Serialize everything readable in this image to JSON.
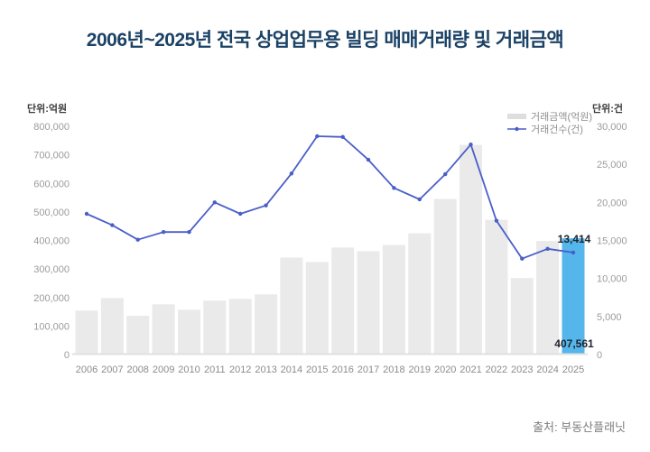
{
  "title": "2006년~2025년 전국 상업업무용 빌딩 매매거래량 및 거래금액",
  "source": "출처: 부동산플래닛",
  "colors": {
    "title": "#1b4265",
    "unit_text": "#3a3a3a",
    "bar": "#eaeaea",
    "bar_highlight": "#54b6ea",
    "line": "#4a5ec8",
    "baseline": "#e0e0e0",
    "axis_text": "#9b9b9b",
    "x_axis_text": "#8c8c8c",
    "legend_bar": "#dedede",
    "legend_text": "#8f8f8f",
    "annotation_text": "#20242e",
    "source_text": "#7d7d7d"
  },
  "chart_data": {
    "type": "bar+line combo",
    "title": "2006년~2025년 전국 상업업무용 빌딩 매매거래량 및 거래금액",
    "categories": [
      "2006",
      "2007",
      "2008",
      "2009",
      "2010",
      "2011",
      "2012",
      "2013",
      "2014",
      "2015",
      "2016",
      "2017",
      "2018",
      "2019",
      "2020",
      "2021",
      "2022",
      "2023",
      "2024",
      "2025"
    ],
    "series": [
      {
        "name": "거래금액(억원)",
        "type": "bar",
        "axis": "left",
        "values": [
          154000,
          198000,
          136000,
          176000,
          157000,
          189000,
          195000,
          211000,
          340000,
          324000,
          375000,
          362000,
          384000,
          425000,
          545000,
          735000,
          472000,
          268000,
          398000,
          407561
        ]
      },
      {
        "name": "거래건수(건)",
        "type": "line",
        "axis": "right",
        "values": [
          18500,
          17000,
          15100,
          16100,
          16100,
          20000,
          18500,
          19600,
          23800,
          28700,
          28600,
          25600,
          21900,
          20400,
          23700,
          27600,
          17600,
          12600,
          13900,
          13414
        ]
      }
    ],
    "left_axis": {
      "label": "단위:억원",
      "min": 0,
      "max": 800000,
      "tick_labels": [
        "800,000",
        "700,000",
        "600,000",
        "500,000",
        "400,000",
        "300,000",
        "200,000",
        "100,000",
        "0"
      ]
    },
    "right_axis": {
      "label": "단위:건",
      "min": 0,
      "max": 30000,
      "tick_labels": [
        "30,000",
        "25,000",
        "20,000",
        "15,000",
        "10,000",
        "5,000",
        "0"
      ]
    },
    "highlight": {
      "category": "2025",
      "index": 19
    },
    "data_labels": {
      "line_last": "13,414",
      "bar_last": "407,561"
    },
    "legend_position": "top-right",
    "grid": "none"
  }
}
